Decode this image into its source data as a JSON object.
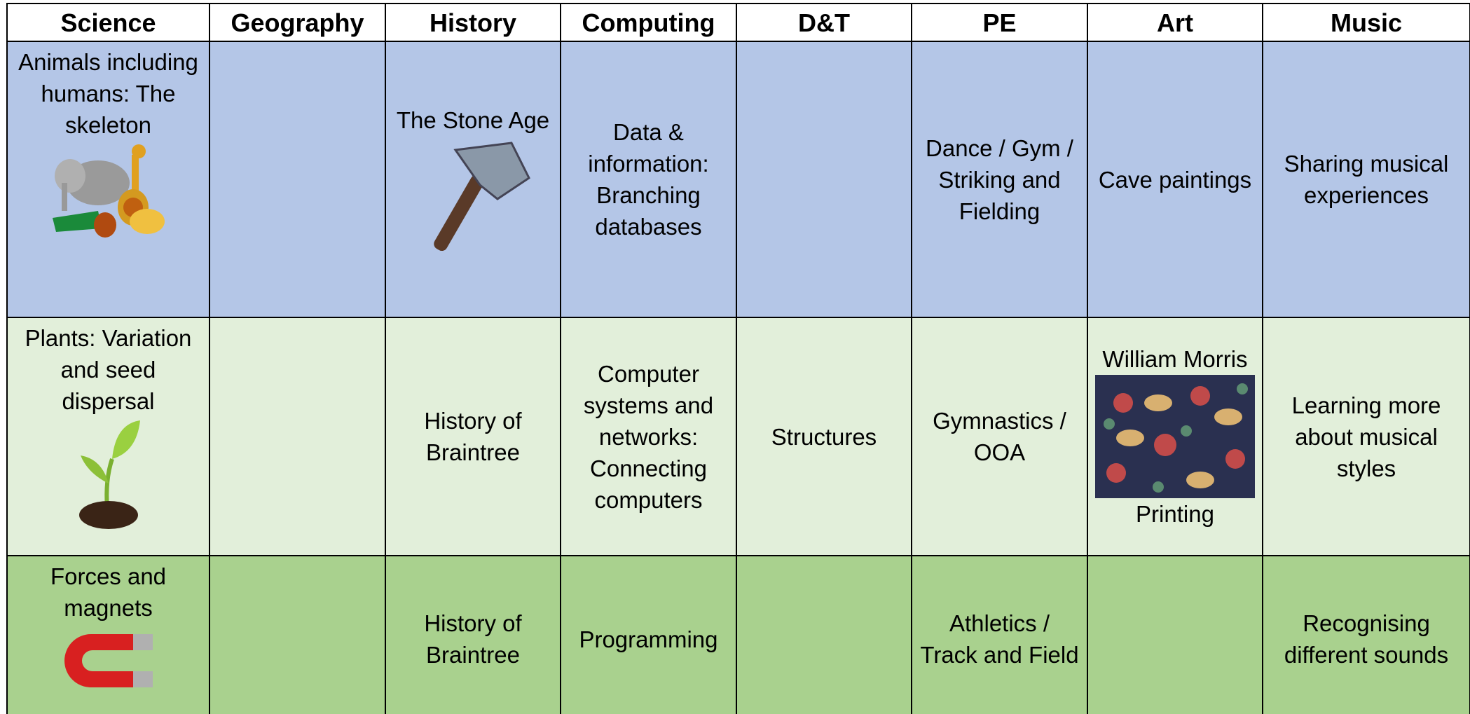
{
  "table": {
    "headers": [
      "Science",
      "Geography",
      "History",
      "Computing",
      "D&T",
      "PE",
      "Art",
      "Music"
    ],
    "rows": [
      [
        "Animals including humans: The skeleton",
        null,
        "The Stone Age",
        "Data & information: Branching databases",
        null,
        "Dance / Gym / Striking and Fielding",
        "Cave paintings",
        "Sharing musical experiences"
      ],
      [
        "Plants: Variation and seed dispersal",
        null,
        "History of Braintree",
        "Computer systems and networks: Connecting computers",
        "Structures",
        "Gymnastics / OOA",
        [
          "William Morris",
          "Printing"
        ],
        "Learning more about musical styles"
      ],
      [
        "Forces and magnets",
        null,
        "History of Braintree",
        "Programming",
        null,
        "Athletics / Track and Field",
        null,
        "Recognising different sounds"
      ]
    ]
  }
}
